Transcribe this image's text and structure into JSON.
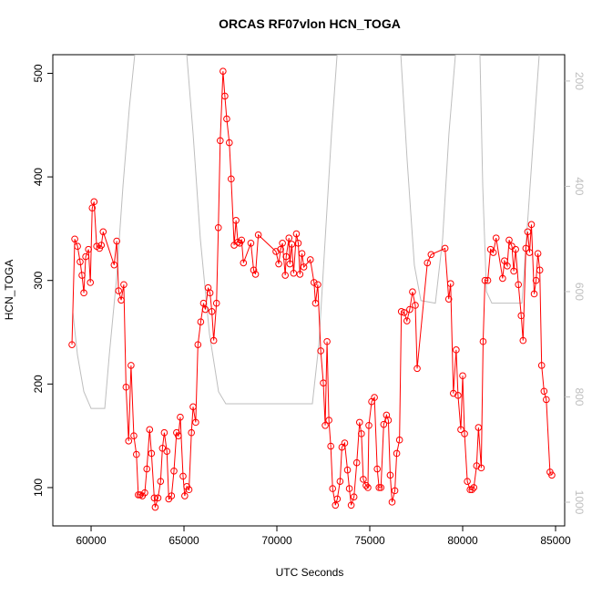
{
  "chart_data": {
    "type": "line",
    "title": "ORCAS RF07vlon HCN_TOGA",
    "xlabel": "UTC Seconds",
    "ylabel": "HCN_TOGA",
    "xlim": [
      57940,
      85490
    ],
    "xticks": [
      60000,
      65000,
      70000,
      75000,
      80000,
      85000
    ],
    "ylim": [
      63,
      518
    ],
    "yticks": [
      100,
      200,
      300,
      400,
      500
    ],
    "y2lim": [
      1045,
      150
    ],
    "y2ticks": [
      200,
      400,
      600,
      800,
      1000
    ],
    "series": [
      {
        "color": "#ff0000",
        "markers": true,
        "x": [
          58970,
          59120,
          59270,
          59410,
          59510,
          59610,
          59710,
          59860,
          59960,
          60060,
          60160,
          60300,
          60450,
          60550,
          60650,
          61240,
          61380,
          61480,
          61620,
          61760,
          61880,
          62020,
          62150,
          62300,
          62440,
          62540,
          62640,
          62760,
          62890,
          63000,
          63150,
          63250,
          63400,
          63450,
          63600,
          63740,
          63840,
          63940,
          64080,
          64180,
          64330,
          64460,
          64600,
          64700,
          64800,
          64950,
          65040,
          65150,
          65270,
          65400,
          65490,
          65630,
          65750,
          65900,
          66050,
          66150,
          66300,
          66400,
          66500,
          66600,
          66750,
          66850,
          66950,
          67100,
          67200,
          67300,
          67440,
          67540,
          67700,
          67800,
          67900,
          68000,
          68100,
          68200,
          68600,
          68750,
          68850,
          69000,
          69950,
          70100,
          70200,
          70300,
          70450,
          70500,
          70650,
          70700,
          70800,
          70900,
          71050,
          71150,
          71240,
          71350,
          71450,
          71800,
          72000,
          72080,
          72200,
          72360,
          72500,
          72600,
          72700,
          72800,
          72900,
          73000,
          73150,
          73250,
          73400,
          73500,
          73650,
          73800,
          73900,
          74000,
          74150,
          74300,
          74450,
          74550,
          74650,
          74800,
          74900,
          74950,
          75100,
          75250,
          75400,
          75500,
          75600,
          75750,
          75900,
          76000,
          76100,
          76200,
          76350,
          76450,
          76600,
          76700,
          76850,
          77000,
          77150,
          77300,
          77450,
          77550,
          78100,
          78300,
          79050,
          79250,
          79350,
          79500,
          79650,
          79750,
          79900,
          80000,
          80100,
          80250,
          80400,
          80500,
          80600,
          80750,
          80850,
          81000,
          81100,
          81200,
          81350,
          81500,
          81650,
          81800,
          82150,
          82250,
          82400,
          82500,
          82650,
          82750,
          82850,
          83000,
          83150,
          83250,
          83400,
          83500,
          83600,
          83700,
          83850,
          83950,
          84050,
          84150,
          84250,
          84380,
          84500,
          84700,
          84800
        ],
        "values": [
          238,
          340,
          333,
          318,
          305,
          288,
          323,
          330,
          298,
          370,
          376,
          333,
          331,
          334,
          347,
          315,
          338,
          290,
          281,
          296,
          197,
          145,
          218,
          150,
          132,
          93,
          93,
          92,
          95,
          118,
          156,
          133,
          90,
          81,
          90,
          106,
          138,
          153,
          135,
          89,
          92,
          116,
          153,
          150,
          168,
          111,
          92,
          101,
          98,
          153,
          178,
          163,
          238,
          260,
          278,
          272,
          293,
          288,
          270,
          242,
          278,
          351,
          435,
          502,
          478,
          456,
          433,
          398,
          334,
          358,
          337,
          336,
          339,
          317,
          336,
          310,
          306,
          344,
          328,
          316,
          330,
          336,
          305,
          323,
          341,
          316,
          335,
          307,
          345,
          336,
          306,
          326,
          313,
          320,
          298,
          278,
          296,
          232,
          201,
          160,
          241,
          165,
          140,
          99,
          83,
          89,
          106,
          139,
          143,
          117,
          99,
          83,
          91,
          124,
          163,
          152,
          108,
          102,
          100,
          160,
          183,
          187,
          118,
          100,
          100,
          161,
          170,
          165,
          112,
          86,
          97,
          133,
          146,
          270,
          269,
          261,
          272,
          289,
          276,
          215,
          317,
          325,
          331,
          282,
          297,
          191,
          233,
          189,
          156,
          208,
          152,
          106,
          98,
          98,
          100,
          121,
          158,
          119,
          241,
          300,
          300,
          330,
          327,
          341,
          302,
          319,
          314,
          339,
          333,
          309,
          330,
          296,
          266,
          242,
          331,
          347,
          327,
          354,
          287,
          300,
          326,
          310,
          218,
          193,
          185,
          115,
          112
        ]
      },
      {
        "color": "#bebebe",
        "axis": "y2",
        "markers": false,
        "x": [
          59020,
          59265,
          59610,
          60000,
          60735,
          60980,
          61370,
          61715,
          62060,
          62350,
          65150,
          65490,
          65880,
          66370,
          66860,
          67250,
          71910,
          72260,
          72600,
          72940,
          73240,
          76670,
          77010,
          77400,
          77750,
          78530,
          78920,
          79260,
          79610,
          80930,
          81080,
          81280,
          81570,
          83190,
          83530,
          83920,
          84120
        ],
        "values": [
          640,
          720,
          790,
          822,
          822,
          720,
          575,
          400,
          250,
          150,
          150,
          300,
          500,
          680,
          790,
          813,
          813,
          700,
          500,
          300,
          150,
          150,
          350,
          550,
          617,
          622,
          500,
          300,
          150,
          150,
          400,
          600,
          622,
          622,
          450,
          250,
          150
        ]
      }
    ]
  }
}
